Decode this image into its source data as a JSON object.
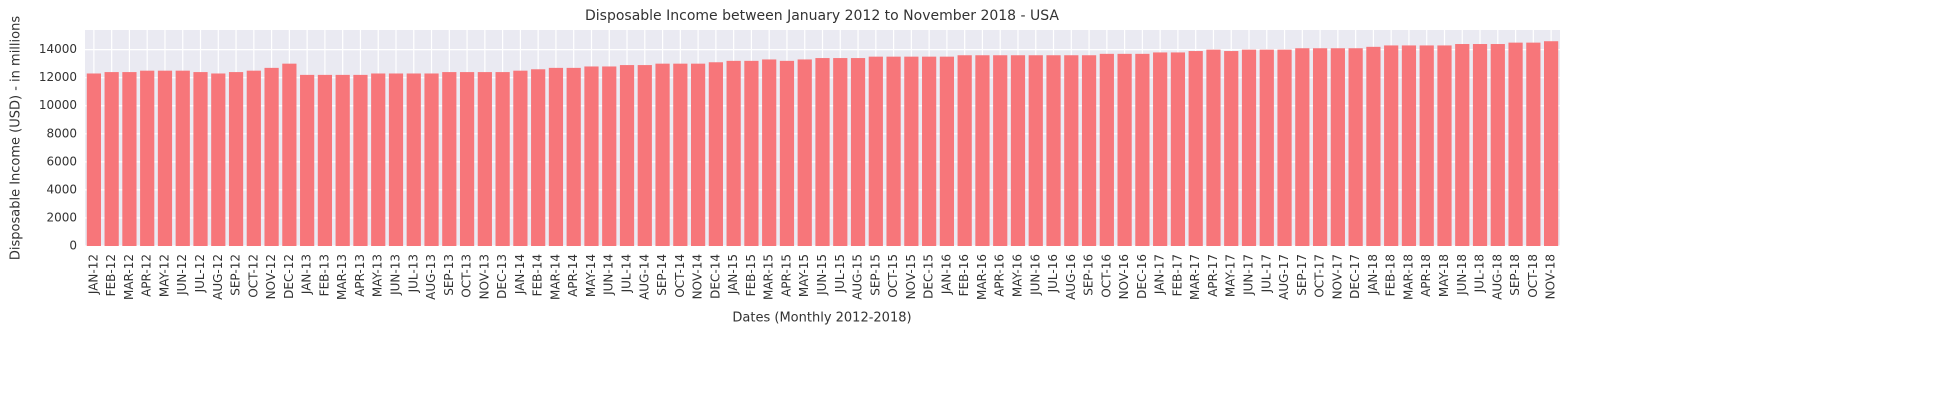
{
  "chart_data": {
    "type": "bar",
    "title": "Disposable Income between January 2012 to November 2018 - USA",
    "x_label": "Dates (Monthly 2012-2018)",
    "y_label": "Disposable Income (USD) - in millions",
    "categories": [
      "JAN-12",
      "FEB-12",
      "MAR-12",
      "APR-12",
      "MAY-12",
      "JUN-12",
      "JUL-12",
      "AUG-12",
      "SEP-12",
      "OCT-12",
      "NOV-12",
      "DEC-12",
      "JAN-13",
      "FEB-13",
      "MAR-13",
      "APR-13",
      "MAY-13",
      "JUN-13",
      "JUL-13",
      "AUG-13",
      "SEP-13",
      "OCT-13",
      "NOV-13",
      "DEC-13",
      "JAN-14",
      "FEB-14",
      "MAR-14",
      "APR-14",
      "MAY-14",
      "JUN-14",
      "JUL-14",
      "AUG-14",
      "SEP-14",
      "OCT-14",
      "NOV-14",
      "DEC-14",
      "JAN-15",
      "FEB-15",
      "MAR-15",
      "APR-15",
      "MAY-15",
      "JUN-15",
      "JUL-15",
      "AUG-15",
      "SEP-15",
      "OCT-15",
      "NOV-15",
      "DEC-15",
      "JAN-16",
      "FEB-16",
      "MAR-16",
      "APR-16",
      "MAY-16",
      "JUN-16",
      "JUL-16",
      "AUG-16",
      "SEP-16",
      "OCT-16",
      "NOV-16",
      "DEC-16",
      "JAN-17",
      "FEB-17",
      "MAR-17",
      "APR-17",
      "MAY-17",
      "JUN-17",
      "JUL-17",
      "AUG-17",
      "SEP-17",
      "OCT-17",
      "NOV-17",
      "DEC-17",
      "JAN-18",
      "FEB-18",
      "MAR-18",
      "APR-18",
      "MAY-18",
      "JUN-18",
      "JUL-18",
      "AUG-18",
      "SEP-18",
      "OCT-18",
      "NOV-18"
    ],
    "values": [
      12300,
      12400,
      12400,
      12500,
      12500,
      12500,
      12400,
      12300,
      12400,
      12500,
      12700,
      13000,
      12200,
      12200,
      12200,
      12200,
      12300,
      12300,
      12300,
      12300,
      12400,
      12400,
      12400,
      12400,
      12500,
      12600,
      12700,
      12700,
      12800,
      12800,
      12900,
      12900,
      13000,
      13000,
      13000,
      13100,
      13200,
      13200,
      13300,
      13200,
      13300,
      13400,
      13400,
      13400,
      13500,
      13500,
      13500,
      13500,
      13500,
      13600,
      13600,
      13600,
      13600,
      13600,
      13600,
      13600,
      13600,
      13700,
      13700,
      13700,
      13800,
      13800,
      13900,
      14000,
      13900,
      14000,
      14000,
      14000,
      14100,
      14100,
      14100,
      14100,
      14200,
      14300,
      14300,
      14300,
      14300,
      14400,
      14400,
      14400,
      14500,
      14500,
      14600
    ],
    "color": "#f7767a",
    "ylim": [
      0,
      15400
    ],
    "yticks": [
      0,
      2000,
      4000,
      6000,
      8000,
      10000,
      12000,
      14000
    ],
    "grid": true
  }
}
